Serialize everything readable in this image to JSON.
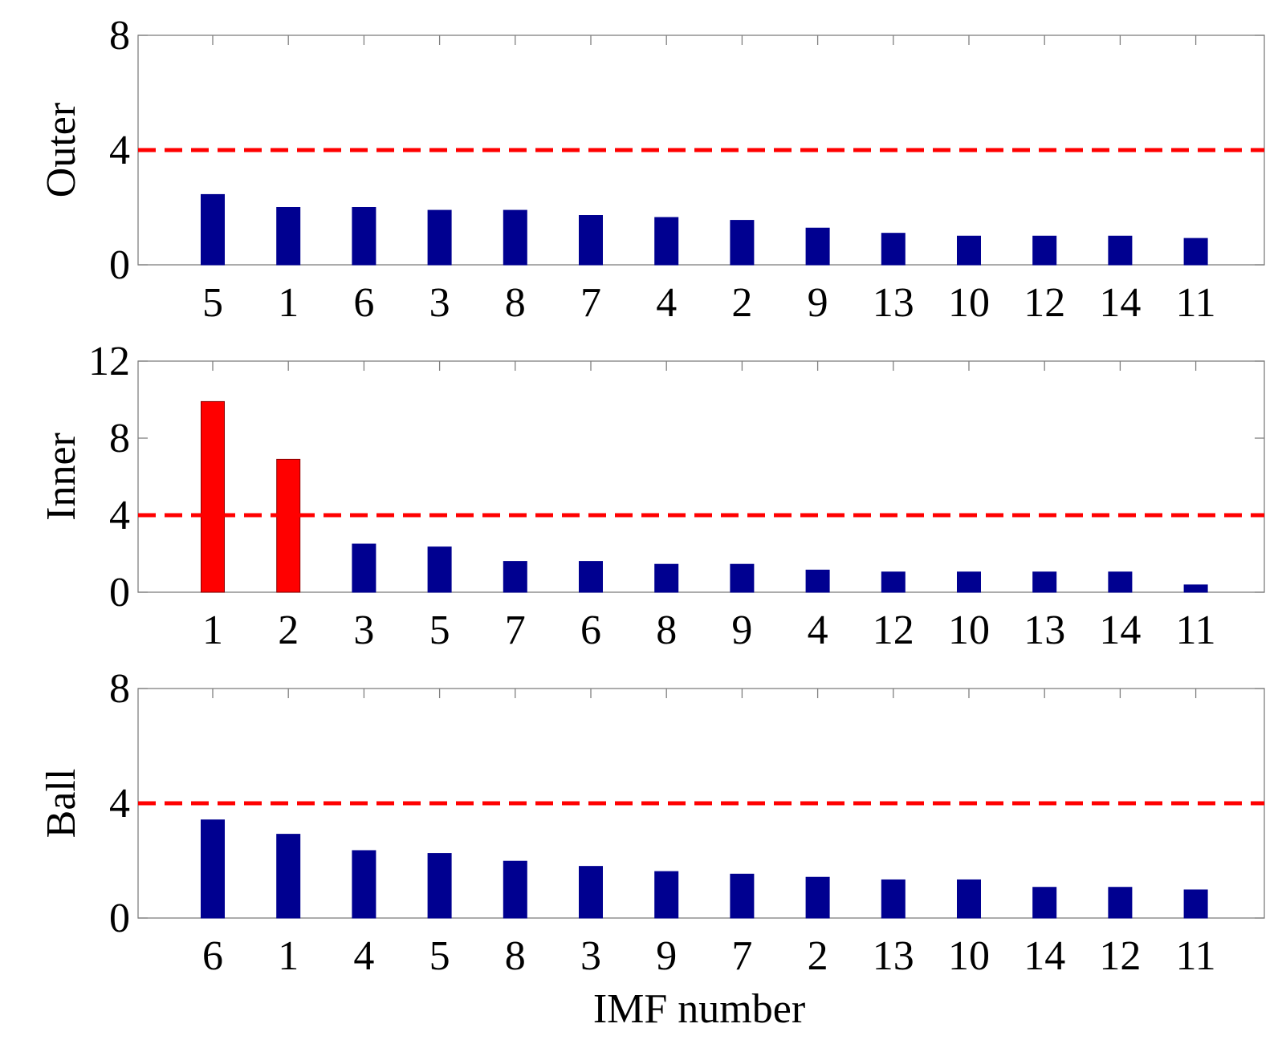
{
  "chart_data": [
    {
      "type": "bar",
      "ylabel": "Outer",
      "xlabel": "",
      "categories": [
        "5",
        "1",
        "6",
        "3",
        "8",
        "7",
        "4",
        "2",
        "9",
        "13",
        "10",
        "12",
        "14",
        "11"
      ],
      "values": [
        2.45,
        2.0,
        2.0,
        1.9,
        1.9,
        1.72,
        1.65,
        1.55,
        1.28,
        1.1,
        1.0,
        1.0,
        1.0,
        0.92
      ],
      "ylim": [
        0,
        8
      ],
      "yticks": [
        "0",
        "4",
        "8"
      ],
      "threshold": 4,
      "bar_colors": [
        "#000090",
        "#000090",
        "#000090",
        "#000090",
        "#000090",
        "#000090",
        "#000090",
        "#000090",
        "#000090",
        "#000090",
        "#000090",
        "#000090",
        "#000090",
        "#000090"
      ]
    },
    {
      "type": "bar",
      "ylabel": "Inner",
      "xlabel": "",
      "categories": [
        "1",
        "2",
        "3",
        "5",
        "7",
        "6",
        "8",
        "9",
        "4",
        "12",
        "10",
        "13",
        "14",
        "11"
      ],
      "values": [
        9.9,
        6.9,
        2.5,
        2.35,
        1.6,
        1.6,
        1.45,
        1.45,
        1.15,
        1.05,
        1.05,
        1.05,
        1.05,
        0.38
      ],
      "ylim": [
        0,
        12
      ],
      "yticks": [
        "0",
        "4",
        "8",
        "12"
      ],
      "threshold": 4,
      "bar_colors": [
        "#ff0000",
        "#ff0000",
        "#000090",
        "#000090",
        "#000090",
        "#000090",
        "#000090",
        "#000090",
        "#000090",
        "#000090",
        "#000090",
        "#000090",
        "#000090",
        "#000090"
      ]
    },
    {
      "type": "bar",
      "ylabel": "Ball",
      "xlabel": "IMF number",
      "categories": [
        "6",
        "1",
        "4",
        "5",
        "8",
        "3",
        "9",
        "7",
        "2",
        "13",
        "10",
        "14",
        "12",
        "11"
      ],
      "values": [
        3.42,
        2.92,
        2.35,
        2.25,
        1.98,
        1.8,
        1.62,
        1.53,
        1.42,
        1.33,
        1.33,
        1.07,
        1.07,
        0.98
      ],
      "ylim": [
        0,
        8
      ],
      "yticks": [
        "0",
        "4",
        "8"
      ],
      "threshold": 4,
      "bar_colors": [
        "#000090",
        "#000090",
        "#000090",
        "#000090",
        "#000090",
        "#000090",
        "#000090",
        "#000090",
        "#000090",
        "#000090",
        "#000090",
        "#000090",
        "#000090",
        "#000090"
      ]
    }
  ],
  "style": {
    "threshold_color": "#ff0000",
    "axis_color": "#808080",
    "default_bar_color": "#000090",
    "highlight_bar_color": "#ff0000"
  }
}
